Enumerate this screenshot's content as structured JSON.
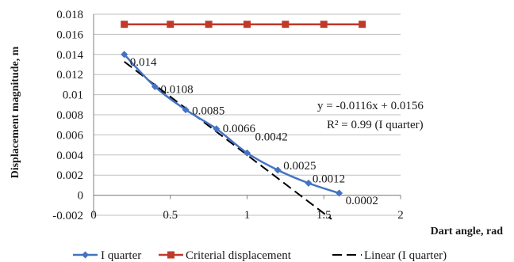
{
  "chart_data": {
    "type": "line",
    "xlabel": "Dart angle, rad",
    "ylabel": "Displacement magnitude, m",
    "xlim": [
      0,
      2
    ],
    "ylim": [
      -0.002,
      0.018
    ],
    "x_ticks": [
      "0",
      "0.5",
      "1",
      "1.5",
      "2"
    ],
    "y_ticks": [
      "-0.002",
      "0",
      "0.002",
      "0.004",
      "0.006",
      "0.008",
      "0.01",
      "0.012",
      "0.014",
      "0.016",
      "0.018"
    ],
    "grid": "horizontal",
    "legend_position": "bottom",
    "series": [
      {
        "name": "I quarter",
        "color": "#4472C4",
        "marker": "diamond",
        "x": [
          0.2,
          0.4,
          0.6,
          0.8,
          1.0,
          1.2,
          1.4,
          1.6
        ],
        "values": [
          0.014,
          0.0108,
          0.0085,
          0.0066,
          0.0042,
          0.0025,
          0.0012,
          0.0002
        ],
        "labels": [
          "0.014",
          "0.0108",
          "0.0085",
          "0.0066",
          "0.0042",
          "0.0025",
          "0.0012",
          "0.0002"
        ]
      },
      {
        "name": "Criterial displacement",
        "color": "#C0392B",
        "marker": "square",
        "x": [
          0.2,
          0.5,
          0.75,
          1.0,
          1.25,
          1.5,
          1.75
        ],
        "values": [
          0.017,
          0.017,
          0.017,
          0.017,
          0.017,
          0.017,
          0.017
        ]
      },
      {
        "name": "Linear (I quarter)",
        "color": "#000000",
        "style": "dashed",
        "x": [
          0.2,
          1.55
        ],
        "values": [
          0.01328,
          -0.00238
        ]
      }
    ],
    "annotations": {
      "equation": "y = -0.0116x + 0.0156",
      "r_squared": "R² = 0.99 (I quarter)"
    }
  }
}
